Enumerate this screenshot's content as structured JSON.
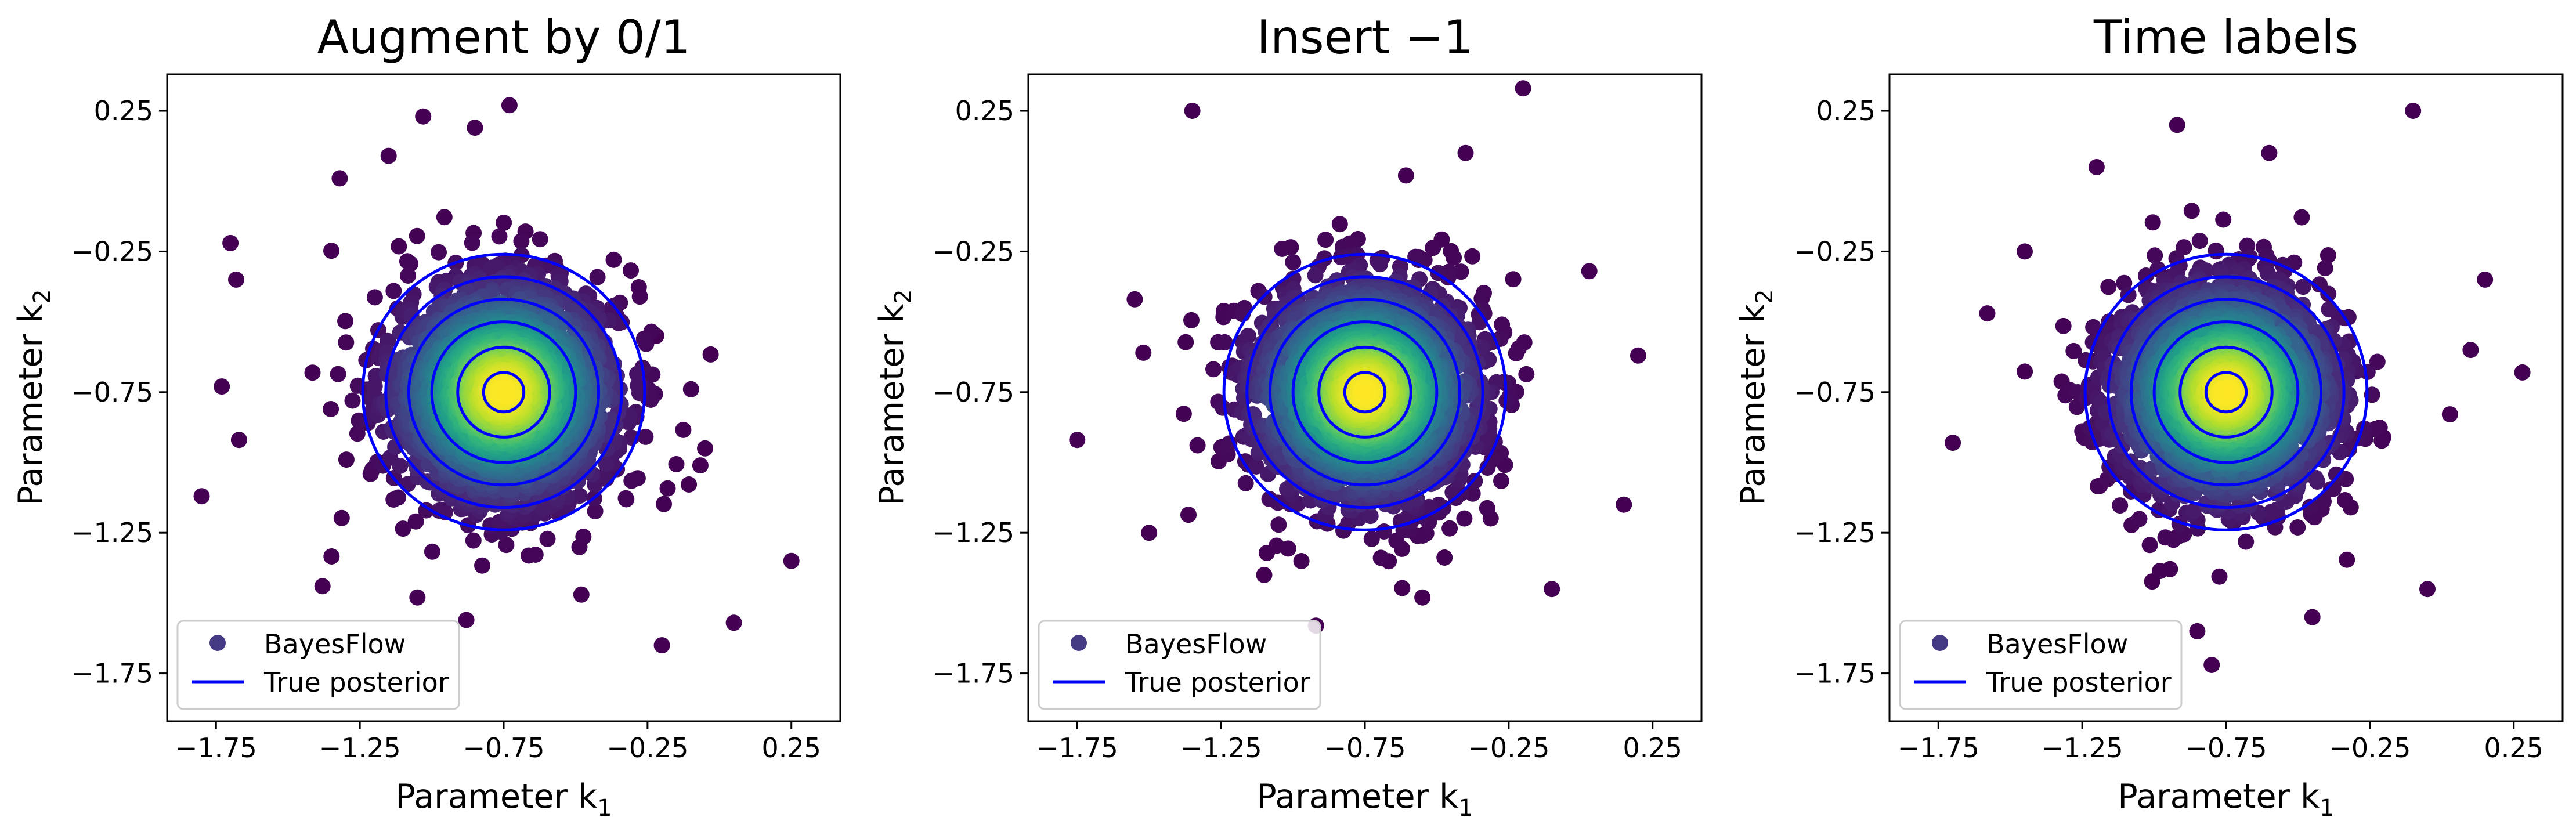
{
  "figure": {
    "background": "#ffffff",
    "contour_color": "#0000ff",
    "scatter_low_color": "#440154",
    "scatter_high_color": "#fde725"
  },
  "chart_data": [
    {
      "type": "scatter",
      "title": "Augment by 0/1",
      "xlabel": "Parameter k",
      "xlabel_subscript": "1",
      "ylabel": "Parameter k",
      "ylabel_subscript": "2",
      "xlim": [
        -1.92,
        0.42
      ],
      "ylim": [
        -1.92,
        0.38
      ],
      "xticks": [
        -1.75,
        -1.25,
        -0.75,
        -0.25,
        0.25
      ],
      "yticks": [
        -1.75,
        -1.25,
        -0.75,
        -0.25,
        0.25
      ],
      "xtick_labels": [
        "−1.75",
        "−1.25",
        "−0.75",
        "−0.25",
        "0.25"
      ],
      "ytick_labels": [
        "−1.75",
        "−1.25",
        "−0.75",
        "−0.25",
        "0.25"
      ],
      "grid": false,
      "legend": {
        "location": "lower-left",
        "entries": [
          {
            "label": "BayesFlow",
            "marker": "circle",
            "color": "#443983"
          },
          {
            "label": "True posterior",
            "marker": "line",
            "color": "#0000ff"
          }
        ]
      },
      "posterior": {
        "center": [
          -0.75,
          -0.75
        ],
        "sigma": 0.19,
        "contour_radii": [
          0.07,
          0.16,
          0.25,
          0.33,
          0.41,
          0.49
        ]
      },
      "outliers": [
        [
          -0.73,
          0.27
        ],
        [
          -0.85,
          0.19
        ],
        [
          -1.03,
          0.23
        ],
        [
          -1.32,
          0.01
        ],
        [
          -1.15,
          0.09
        ],
        [
          -1.7,
          -0.22
        ],
        [
          -1.68,
          -0.35
        ],
        [
          -1.73,
          -0.73
        ],
        [
          -1.67,
          -0.92
        ],
        [
          -1.8,
          -1.12
        ],
        [
          -1.38,
          -1.44
        ],
        [
          -1.05,
          -1.48
        ],
        [
          -0.88,
          -1.56
        ],
        [
          -0.48,
          -1.47
        ],
        [
          -0.2,
          -1.65
        ],
        [
          0.05,
          -1.57
        ],
        [
          0.25,
          -1.35
        ],
        [
          -0.05,
          -0.95
        ],
        [
          -0.22,
          -0.55
        ]
      ]
    },
    {
      "type": "scatter",
      "title": "Insert −1",
      "xlabel": "Parameter k",
      "xlabel_subscript": "1",
      "ylabel": "Parameter k",
      "ylabel_subscript": "2",
      "xlim": [
        -1.92,
        0.42
      ],
      "ylim": [
        -1.92,
        0.38
      ],
      "xticks": [
        -1.75,
        -1.25,
        -0.75,
        -0.25,
        0.25
      ],
      "yticks": [
        -1.75,
        -1.25,
        -0.75,
        -0.25,
        0.25
      ],
      "xtick_labels": [
        "−1.75",
        "−1.25",
        "−0.75",
        "−0.25",
        "0.25"
      ],
      "ytick_labels": [
        "−1.75",
        "−1.25",
        "−0.75",
        "−0.25",
        "0.25"
      ],
      "grid": false,
      "legend": {
        "location": "lower-left",
        "entries": [
          {
            "label": "BayesFlow",
            "marker": "circle",
            "color": "#443983"
          },
          {
            "label": "True posterior",
            "marker": "line",
            "color": "#0000ff"
          }
        ]
      },
      "posterior": {
        "center": [
          -0.75,
          -0.75
        ],
        "sigma": 0.19,
        "contour_radii": [
          0.07,
          0.16,
          0.25,
          0.33,
          0.41,
          0.49
        ]
      },
      "outliers": [
        [
          -0.2,
          0.33
        ],
        [
          -1.35,
          0.25
        ],
        [
          -1.55,
          -0.42
        ],
        [
          -1.52,
          -0.61
        ],
        [
          -1.75,
          -0.92
        ],
        [
          -1.5,
          -1.25
        ],
        [
          -1.1,
          -1.4
        ],
        [
          -0.92,
          -1.58
        ],
        [
          -0.55,
          -1.48
        ],
        [
          -0.1,
          -1.45
        ],
        [
          0.15,
          -1.15
        ],
        [
          0.2,
          -0.62
        ],
        [
          0.03,
          -0.32
        ],
        [
          -0.4,
          0.1
        ]
      ]
    },
    {
      "type": "scatter",
      "title": "Time labels",
      "xlabel": "Parameter k",
      "xlabel_subscript": "1",
      "ylabel": "Parameter k",
      "ylabel_subscript": "2",
      "xlim": [
        -1.92,
        0.42
      ],
      "ylim": [
        -1.92,
        0.38
      ],
      "xticks": [
        -1.75,
        -1.25,
        -0.75,
        -0.25,
        0.25
      ],
      "yticks": [
        -1.75,
        -1.25,
        -0.75,
        -0.25,
        0.25
      ],
      "xtick_labels": [
        "−1.75",
        "−1.25",
        "−0.75",
        "−0.25",
        "0.25"
      ],
      "ytick_labels": [
        "−1.75",
        "−1.25",
        "−0.75",
        "−0.25",
        "0.25"
      ],
      "grid": false,
      "legend": {
        "location": "lower-left",
        "entries": [
          {
            "label": "BayesFlow",
            "marker": "circle",
            "color": "#443983"
          },
          {
            "label": "True posterior",
            "marker": "line",
            "color": "#0000ff"
          }
        ]
      },
      "posterior": {
        "center": [
          -0.75,
          -0.75
        ],
        "sigma": 0.19,
        "contour_radii": [
          0.07,
          0.16,
          0.25,
          0.33,
          0.41,
          0.49
        ]
      },
      "outliers": [
        [
          -0.1,
          0.25
        ],
        [
          -1.7,
          -0.93
        ],
        [
          -1.58,
          -0.47
        ],
        [
          -1.45,
          -0.25
        ],
        [
          -1.2,
          0.05
        ],
        [
          -0.92,
          0.2
        ],
        [
          -0.6,
          0.1
        ],
        [
          -0.85,
          -1.6
        ],
        [
          -0.8,
          -1.72
        ],
        [
          -0.45,
          -1.55
        ],
        [
          -0.05,
          -1.45
        ],
        [
          0.1,
          -0.6
        ],
        [
          0.28,
          -0.68
        ],
        [
          0.15,
          -0.35
        ]
      ]
    }
  ]
}
